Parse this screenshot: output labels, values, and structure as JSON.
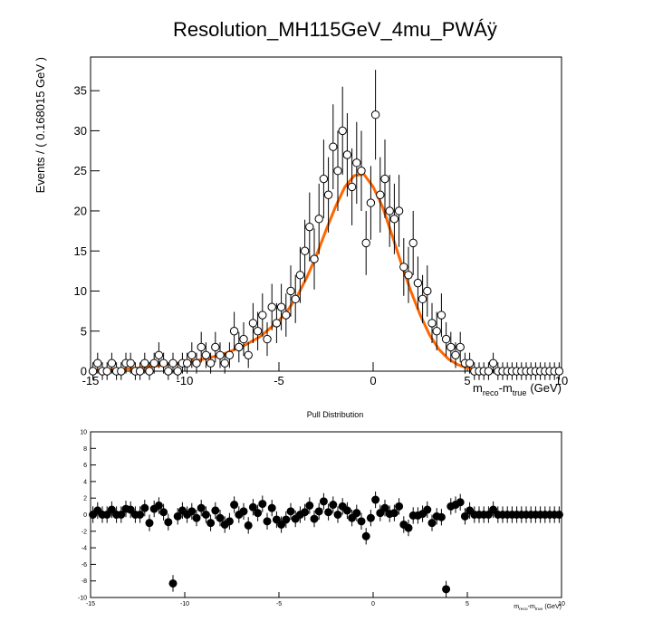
{
  "chart_data": [
    {
      "type": "scatter",
      "title": "Resolution_MH115GeV_4mu_PWÁÿ",
      "ylabel": "Events / ( 0.168015 GeV )",
      "xlabel_parts": [
        "m",
        "reco",
        "-m",
        "true",
        "(GeV)"
      ],
      "x": [
        -14.875,
        -14.625,
        -14.375,
        -14.125,
        -13.875,
        -13.625,
        -13.375,
        -13.125,
        -12.875,
        -12.625,
        -12.375,
        -12.125,
        -11.875,
        -11.625,
        -11.375,
        -11.125,
        -10.875,
        -10.625,
        -10.375,
        -10.125,
        -9.875,
        -9.625,
        -9.375,
        -9.125,
        -8.875,
        -8.625,
        -8.375,
        -8.125,
        -7.875,
        -7.625,
        -7.375,
        -7.125,
        -6.875,
        -6.625,
        -6.375,
        -6.125,
        -5.875,
        -5.625,
        -5.375,
        -5.125,
        -4.875,
        -4.625,
        -4.375,
        -4.125,
        -3.875,
        -3.625,
        -3.375,
        -3.125,
        -2.875,
        -2.625,
        -2.375,
        -2.125,
        -1.875,
        -1.625,
        -1.375,
        -1.125,
        -0.875,
        -0.625,
        -0.375,
        -0.125,
        0.125,
        0.375,
        0.625,
        0.875,
        1.125,
        1.375,
        1.625,
        1.875,
        2.125,
        2.375,
        2.625,
        2.875,
        3.125,
        3.375,
        3.625,
        3.875,
        4.125,
        4.375,
        4.625,
        4.875,
        5.125,
        5.375,
        5.625,
        5.875,
        6.125,
        6.375,
        6.625,
        6.875,
        7.125,
        7.375,
        7.625,
        7.875,
        8.125,
        8.375,
        8.625,
        8.875,
        9.125,
        9.375,
        9.625,
        9.875
      ],
      "values": [
        0,
        1,
        0,
        0,
        1,
        0,
        0,
        1,
        1,
        0,
        0,
        1,
        0,
        1,
        2,
        1,
        0,
        1,
        0,
        1,
        1,
        2,
        1,
        3,
        2,
        1,
        3,
        2,
        1,
        2,
        5,
        3,
        4,
        2,
        6,
        5,
        7,
        4,
        8,
        6,
        8,
        7,
        10,
        9,
        12,
        15,
        18,
        14,
        19,
        24,
        22,
        28,
        25,
        30,
        27,
        23,
        26,
        25,
        16,
        21,
        32,
        22,
        24,
        20,
        19,
        20,
        13,
        12,
        16,
        11,
        9,
        10,
        6,
        5,
        7,
        4,
        3,
        2,
        3,
        1,
        1,
        0,
        0,
        0,
        0,
        1,
        0,
        0,
        0,
        0,
        0,
        0,
        0,
        0,
        0,
        0,
        0,
        0,
        0,
        0
      ],
      "errors": [
        1.1,
        1.3,
        1.1,
        1.1,
        1.3,
        1.1,
        1.1,
        1.3,
        1.3,
        1.1,
        1.1,
        1.3,
        1.1,
        1.3,
        1.6,
        1.3,
        1.1,
        1.3,
        1.1,
        1.3,
        1.3,
        1.6,
        1.3,
        1.9,
        1.6,
        1.3,
        1.9,
        1.6,
        1.3,
        1.6,
        2.4,
        1.9,
        2.1,
        1.6,
        2.5,
        2.4,
        2.7,
        2.1,
        2.9,
        2.5,
        2.9,
        2.7,
        3.2,
        3,
        3.5,
        3.9,
        4.3,
        3.8,
        4.4,
        4.9,
        4.7,
        5.3,
        5,
        5.5,
        5.2,
        4.8,
        5.1,
        5,
        4,
        4.6,
        5.6,
        4.7,
        4.9,
        4.5,
        4.4,
        4.5,
        3.6,
        3.5,
        4,
        3.3,
        3,
        3.2,
        2.5,
        2.4,
        2.7,
        2.1,
        1.9,
        1.6,
        1.9,
        1.3,
        1.3,
        1.1,
        1.1,
        1.1,
        1.1,
        1.3,
        1.1,
        1.1,
        1.1,
        1.1,
        1.1,
        1.1,
        1.1,
        1.1,
        1.1,
        1.1,
        1.1,
        1.1,
        1.1,
        1.1
      ],
      "fit": {
        "color": "#ff6600",
        "x": [
          -15,
          -14,
          -13,
          -12,
          -11,
          -10,
          -9,
          -8,
          -7,
          -6,
          -5,
          -4.5,
          -4,
          -3.5,
          -3,
          -2.5,
          -2,
          -1.5,
          -1,
          -0.5,
          0,
          0.5,
          1,
          1.5,
          2,
          2.5,
          3,
          3.5,
          4,
          4.5,
          5,
          6,
          7,
          8,
          9,
          10
        ],
        "values": [
          0.1,
          0.2,
          0.3,
          0.5,
          0.8,
          1.1,
          1.5,
          2.1,
          3,
          4.3,
          6.3,
          7.7,
          9.5,
          11.8,
          14.5,
          17.6,
          20.5,
          23,
          24.4,
          24.6,
          23,
          20.5,
          17,
          13.4,
          10,
          7,
          4.5,
          2.7,
          1.5,
          0.8,
          0.4,
          0.1,
          0,
          0,
          0,
          0
        ]
      },
      "xlim": [
        -15,
        10
      ],
      "ylim": [
        0,
        39.2
      ],
      "xticks": [
        -15,
        -10,
        -5,
        0,
        5,
        10
      ],
      "yticks": [
        0,
        5,
        10,
        15,
        20,
        25,
        30,
        35
      ]
    },
    {
      "type": "scatter",
      "title": "Pull Distribution",
      "xlabel_parts": [
        "m",
        "reco",
        "-m",
        "true",
        "(GeV)"
      ],
      "x": [
        -14.875,
        -14.625,
        -14.375,
        -14.125,
        -13.875,
        -13.625,
        -13.375,
        -13.125,
        -12.875,
        -12.625,
        -12.375,
        -12.125,
        -11.875,
        -11.625,
        -11.375,
        -11.125,
        -10.875,
        -10.625,
        -10.375,
        -10.125,
        -9.875,
        -9.625,
        -9.375,
        -9.125,
        -8.875,
        -8.625,
        -8.375,
        -8.125,
        -7.875,
        -7.625,
        -7.375,
        -7.125,
        -6.875,
        -6.625,
        -6.375,
        -6.125,
        -5.875,
        -5.625,
        -5.375,
        -5.125,
        -4.875,
        -4.625,
        -4.375,
        -4.125,
        -3.875,
        -3.625,
        -3.375,
        -3.125,
        -2.875,
        -2.625,
        -2.375,
        -2.125,
        -1.875,
        -1.625,
        -1.375,
        -1.125,
        -0.875,
        -0.625,
        -0.375,
        -0.125,
        0.125,
        0.375,
        0.625,
        0.875,
        1.125,
        1.375,
        1.625,
        1.875,
        2.125,
        2.375,
        2.625,
        2.875,
        3.125,
        3.375,
        3.625,
        3.875,
        4.125,
        4.375,
        4.625,
        4.875,
        5.125,
        5.375,
        5.625,
        5.875,
        6.125,
        6.375,
        6.625,
        6.875,
        7.125,
        7.375,
        7.625,
        7.875,
        8.125,
        8.375,
        8.625,
        8.875,
        9.125,
        9.375,
        9.625,
        9.875
      ],
      "values": [
        0,
        0.5,
        0,
        0,
        0.6,
        0,
        0,
        0.7,
        0.6,
        0,
        0,
        0.8,
        -1,
        0.7,
        1.1,
        0.3,
        -0.9,
        -8.3,
        -0.2,
        0.5,
        0,
        0.4,
        -0.4,
        0.8,
        0,
        -1,
        0.5,
        -0.4,
        -1.2,
        -0.8,
        1.2,
        0,
        0.4,
        -1.3,
        0.9,
        0.2,
        1.3,
        -0.8,
        0.8,
        -0.6,
        -1.2,
        -0.6,
        0.4,
        -0.5,
        0,
        0.3,
        1.1,
        -0.5,
        0.4,
        1.6,
        0.3,
        1.2,
        0,
        1,
        0.5,
        -0.4,
        0.2,
        -0.8,
        -2.6,
        -0.4,
        1.8,
        0.2,
        0.8,
        0.1,
        0.2,
        1,
        -1.2,
        -1.6,
        -0.1,
        -0.1,
        0.1,
        0.6,
        -1,
        -0.2,
        -0.3,
        -9,
        1,
        1.2,
        1.5,
        -0.2,
        0.5,
        0,
        0,
        0,
        0,
        0.6,
        0,
        0,
        0,
        0,
        0,
        0,
        0,
        0,
        0,
        0,
        0,
        0,
        0,
        0
      ],
      "errors": [
        1,
        1,
        1,
        1,
        1,
        1,
        1,
        1,
        1,
        1,
        1,
        1,
        1,
        1,
        1,
        1,
        1,
        1,
        1,
        1,
        1,
        1,
        1,
        1,
        1,
        1,
        1,
        1,
        1,
        1,
        1,
        1,
        1,
        1,
        1,
        1,
        1,
        1,
        1,
        1,
        1,
        1,
        1,
        1,
        1,
        1,
        1,
        1,
        1,
        1,
        1,
        1,
        1,
        1,
        1,
        1,
        1,
        1,
        1,
        1,
        1,
        1,
        1,
        1,
        1,
        1,
        1,
        1,
        1,
        1,
        1,
        1,
        1,
        1,
        1,
        1,
        1,
        1,
        1,
        1,
        1,
        1,
        1,
        1,
        1,
        1,
        1,
        1,
        1,
        1,
        1,
        1,
        1,
        1,
        1,
        1,
        1,
        1,
        1,
        1
      ],
      "xlim": [
        -15,
        10
      ],
      "ylim": [
        -10,
        10
      ],
      "xticks": [
        -15,
        -10,
        -5,
        0,
        5,
        10
      ],
      "yticks": [
        -10,
        -8,
        -6,
        -4,
        -2,
        0,
        2,
        4,
        6,
        8,
        10
      ]
    }
  ]
}
